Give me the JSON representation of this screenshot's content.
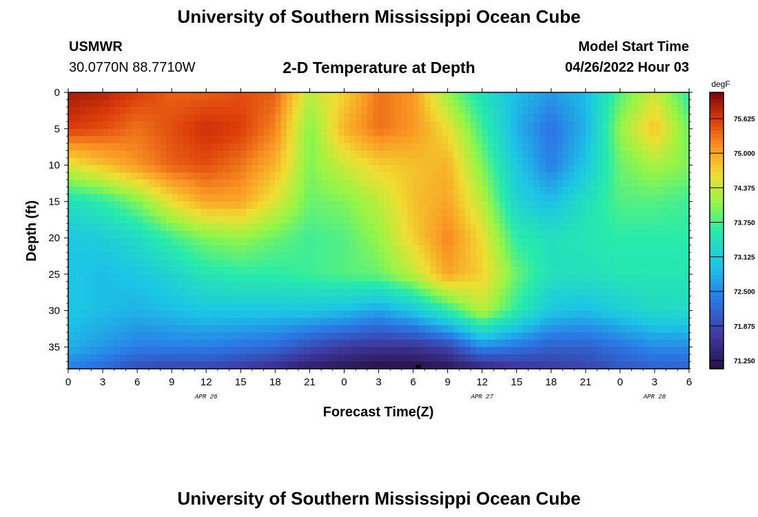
{
  "titles": {
    "main": "University of Southern Mississippi Ocean Cube",
    "bottom": "University of Southern Mississippi Ocean Cube"
  },
  "station": {
    "id": "USMWR",
    "coords": "30.0770N  88.7710W"
  },
  "model": {
    "label": "Model Start Time",
    "start": "04/26/2022 Hour 03"
  },
  "chart_data": {
    "type": "heatmap",
    "title": "2-D Temperature at Depth",
    "xlabel": "Forecast Time(Z)",
    "ylabel": "Depth (ft)",
    "x_tick_labels": [
      "0",
      "3",
      "6",
      "9",
      "12",
      "15",
      "18",
      "21",
      "0",
      "3",
      "6",
      "9",
      "12",
      "15",
      "18",
      "21",
      "0",
      "3",
      "6"
    ],
    "date_labels": [
      {
        "text": "APR 26",
        "hour": 12
      },
      {
        "text": "APR 27",
        "hour": 36
      },
      {
        "text": "APR 28",
        "hour": 51
      }
    ],
    "xlim_hours": [
      0,
      54
    ],
    "y_ticks": [
      0,
      5,
      10,
      15,
      20,
      25,
      30,
      35
    ],
    "ylim_ft": [
      0,
      38
    ],
    "y_inverted": true,
    "colorbar": {
      "unit": "degF",
      "ticks": [
        "75.625",
        "75.000",
        "74.375",
        "73.750",
        "73.125",
        "72.500",
        "71.875",
        "71.250"
      ],
      "range": [
        71.1,
        76.1
      ]
    },
    "temperature_field": {
      "note_units": "degF",
      "x_hours": [
        0,
        3,
        6,
        9,
        12,
        15,
        18,
        21,
        24,
        27,
        30,
        33,
        36,
        39,
        42,
        45,
        48,
        51,
        54
      ],
      "y_depths_ft": [
        0,
        5,
        10,
        15,
        20,
        25,
        30,
        35,
        38
      ],
      "values": [
        [
          75.9,
          75.8,
          75.6,
          75.4,
          75.4,
          75.5,
          75.4,
          74.3,
          74.7,
          75.3,
          75.1,
          74.1,
          73.4,
          72.9,
          72.6,
          72.9,
          73.8,
          74.4,
          73.6
        ],
        [
          75.6,
          75.5,
          75.3,
          75.5,
          75.7,
          75.6,
          75.2,
          74.0,
          74.9,
          75.3,
          75.1,
          74.6,
          73.7,
          72.8,
          72.3,
          72.8,
          74.1,
          74.8,
          73.9
        ],
        [
          74.5,
          74.8,
          75.1,
          75.4,
          75.5,
          75.3,
          74.9,
          74.0,
          74.4,
          74.7,
          74.8,
          74.9,
          74.0,
          73.0,
          72.4,
          73.0,
          73.9,
          74.2,
          74.0
        ],
        [
          73.4,
          73.6,
          74.0,
          74.6,
          75.0,
          75.0,
          74.5,
          73.9,
          74.0,
          74.3,
          74.8,
          75.0,
          74.3,
          73.2,
          72.9,
          73.4,
          73.8,
          73.8,
          73.7
        ],
        [
          73.0,
          73.1,
          73.3,
          73.7,
          74.0,
          74.1,
          73.9,
          73.7,
          73.8,
          74.1,
          74.7,
          75.2,
          74.6,
          73.6,
          73.4,
          73.5,
          73.6,
          73.6,
          73.6
        ],
        [
          73.0,
          72.9,
          73.0,
          73.2,
          73.5,
          73.6,
          73.6,
          73.7,
          73.8,
          73.9,
          74.3,
          75.0,
          74.7,
          73.9,
          73.4,
          73.4,
          73.5,
          73.5,
          73.5
        ],
        [
          73.0,
          72.9,
          72.8,
          72.9,
          73.0,
          73.0,
          73.0,
          73.0,
          72.9,
          72.7,
          73.0,
          73.6,
          74.3,
          73.6,
          73.0,
          72.9,
          73.1,
          73.3,
          73.3
        ],
        [
          72.8,
          72.6,
          72.4,
          72.4,
          72.4,
          72.3,
          72.2,
          71.9,
          71.7,
          71.6,
          71.6,
          71.8,
          72.5,
          72.3,
          72.1,
          72.1,
          72.3,
          72.5,
          72.5
        ],
        [
          72.4,
          72.2,
          71.9,
          71.8,
          71.8,
          71.7,
          71.5,
          71.3,
          71.2,
          71.1,
          71.1,
          71.2,
          71.4,
          71.6,
          71.7,
          71.8,
          72.0,
          72.1,
          72.1
        ]
      ]
    }
  }
}
